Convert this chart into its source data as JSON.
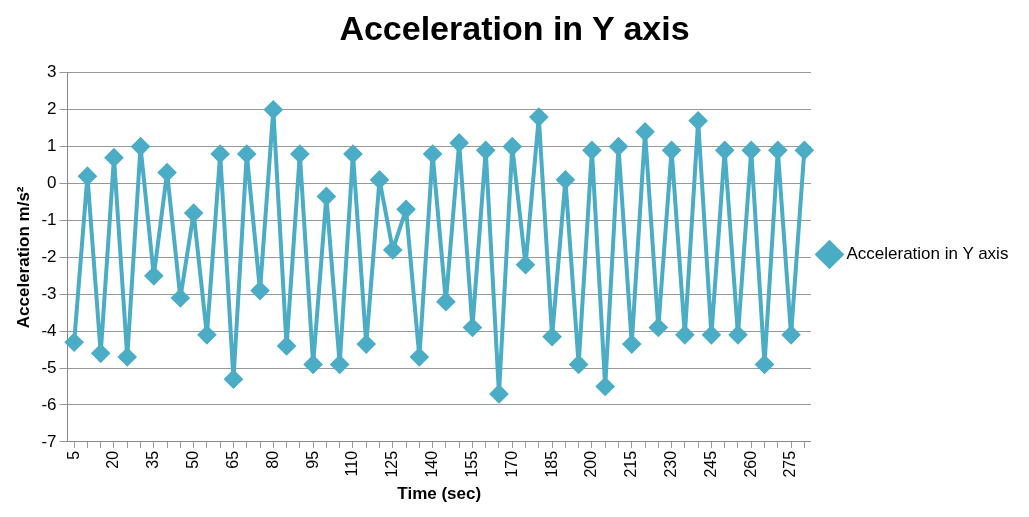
{
  "chart_data": {
    "type": "line",
    "title": "Acceleration in Y axis",
    "xlabel": "Time (sec)",
    "ylabel": "Acceleration m/s²",
    "categories": [
      "5",
      null,
      null,
      "20",
      null,
      null,
      "35",
      null,
      null,
      "50",
      null,
      null,
      "65",
      null,
      null,
      "80",
      null,
      null,
      "95",
      null,
      null,
      "110",
      null,
      null,
      "125",
      null,
      null,
      "140",
      null,
      null,
      "155",
      null,
      null,
      "170",
      null,
      null,
      "185",
      null,
      null,
      "200",
      null,
      null,
      "215",
      null,
      null,
      "230",
      null,
      null,
      "245",
      null,
      null,
      "260",
      null,
      null,
      "275",
      null
    ],
    "series": [
      {
        "name": "Acceleration in Y axis",
        "color": "#4bacc6",
        "values": [
          -4.3,
          0.2,
          -4.6,
          0.7,
          -4.7,
          1.0,
          -2.5,
          0.3,
          -3.1,
          -0.8,
          -4.1,
          0.8,
          -5.3,
          0.8,
          -2.9,
          2.0,
          -4.4,
          0.8,
          -4.9,
          -0.35,
          -4.9,
          0.8,
          -4.35,
          0.1,
          -1.8,
          -0.7,
          -4.7,
          0.8,
          -3.2,
          1.1,
          -3.9,
          0.9,
          -5.7,
          1.0,
          -2.2,
          1.8,
          -4.15,
          0.1,
          -4.9,
          0.9,
          -5.5,
          1.0,
          -4.35,
          1.4,
          -3.9,
          0.9,
          -4.1,
          1.7,
          -4.1,
          0.9,
          -4.1,
          0.9,
          -4.9,
          0.9,
          -4.1,
          0.9
        ]
      }
    ],
    "ylim": [
      -7,
      3
    ],
    "yticks": [
      -7,
      -6,
      -5,
      -4,
      -3,
      -2,
      -1,
      0,
      1,
      2,
      3
    ],
    "grid": "y",
    "legend": "right",
    "marker": "diamond",
    "line_style": "solid"
  }
}
